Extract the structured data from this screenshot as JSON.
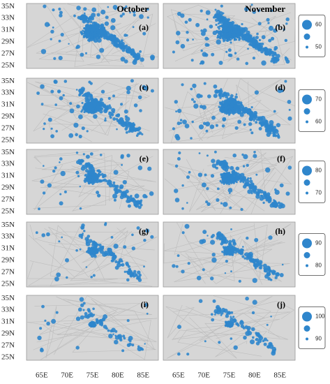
{
  "column_titles": [
    "October",
    "November"
  ],
  "lat_labels": [
    "35N",
    "33N",
    "31N",
    "29N",
    "27N",
    "25N"
  ],
  "lon_labels": [
    "65E",
    "70E",
    "75E",
    "80E",
    "85E"
  ],
  "panels": [
    "(a)",
    "(b)",
    "(c)",
    "(d)",
    "(e)",
    "(f)",
    "(g)",
    "(h)",
    "(i)",
    "(j)"
  ],
  "legends": [
    {
      "max": 60,
      "min": 50
    },
    {
      "max": 70,
      "min": 60
    },
    {
      "max": 80,
      "min": 70
    },
    {
      "max": 90,
      "min": 80
    },
    {
      "max": 100,
      "min": 90
    }
  ]
}
